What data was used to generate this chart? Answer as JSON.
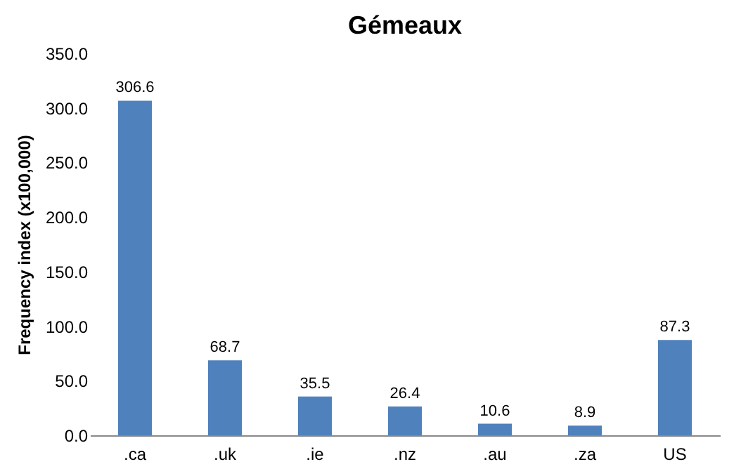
{
  "chart_data": {
    "type": "bar",
    "title": "Gémeaux",
    "ylabel": "Frequency index (x100,000)",
    "categories": [
      ".ca",
      ".uk",
      ".ie",
      ".nz",
      ".au",
      ".za",
      "US"
    ],
    "values": [
      306.6,
      68.7,
      35.5,
      26.4,
      10.6,
      8.9,
      87.3
    ],
    "color": "#4f81bd",
    "ylim": [
      0,
      350
    ],
    "yticks": [
      {
        "value": 0,
        "label": "0.0"
      },
      {
        "value": 50,
        "label": "50.0"
      },
      {
        "value": 100,
        "label": "100.0"
      },
      {
        "value": 150,
        "label": "150.0"
      },
      {
        "value": 200,
        "label": "200.0"
      },
      {
        "value": 250,
        "label": "250.0"
      },
      {
        "value": 300,
        "label": "300.0"
      },
      {
        "value": 350,
        "label": "350.0"
      }
    ],
    "data_labels": true,
    "grid": false
  }
}
